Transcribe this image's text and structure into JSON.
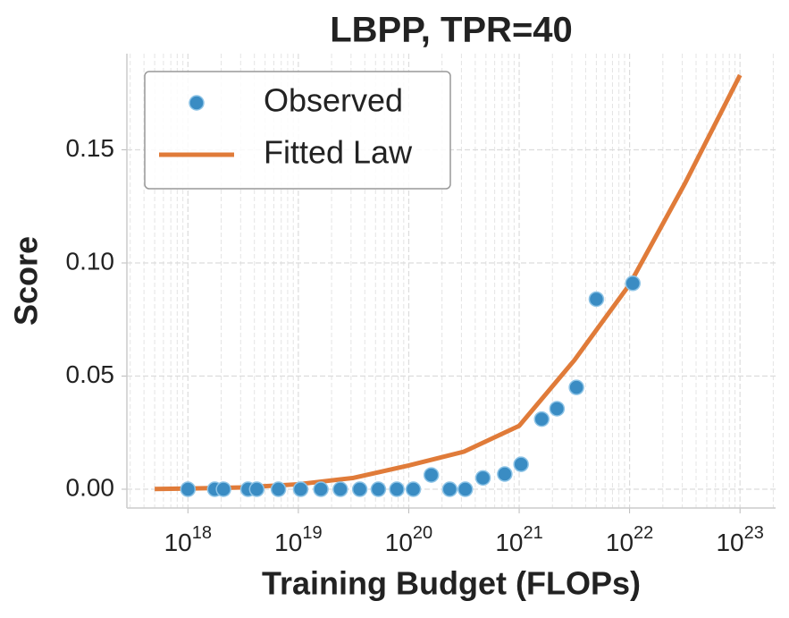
{
  "chart_data": {
    "type": "scatter",
    "title": "LBPP, TPR=40",
    "xlabel": "Training Budget (FLOPs)",
    "ylabel": "Score",
    "xscale": "log",
    "grid": true,
    "minor_grid": true,
    "legend": "upper left",
    "xlim": [
      2.8e+17,
      2.1e+23
    ],
    "ylim": [
      -0.0083,
      0.1925
    ],
    "xticks": [
      {
        "value": 1e+18,
        "label": "10^18"
      },
      {
        "value": 1e+19,
        "label": "10^19"
      },
      {
        "value": 1e+20,
        "label": "10^20"
      },
      {
        "value": 1e+21,
        "label": "10^21"
      },
      {
        "value": 1e+22,
        "label": "10^22"
      },
      {
        "value": 1e+23,
        "label": "10^23"
      }
    ],
    "yticks": [
      {
        "value": 0,
        "label": "0.00"
      },
      {
        "value": 0.05,
        "label": "0.05"
      },
      {
        "value": 0.1,
        "label": "0.10"
      },
      {
        "value": 0.15,
        "label": "0.15"
      }
    ],
    "series": [
      {
        "name": "Observed",
        "type": "scatter",
        "color": "#3a8cc3",
        "x": [
          1e+18,
          1.75e+18,
          2.1e+18,
          3.5e+18,
          4.2e+18,
          6.6e+18,
          1.05e+19,
          1.6e+19,
          2.4e+19,
          3.6e+19,
          5.3e+19,
          7.8e+19,
          1.1e+20,
          1.6e+20,
          2.35e+20,
          3.25e+20,
          4.7e+20,
          7.4e+20,
          1.04e+21,
          1.6e+21,
          2.2e+21,
          3.3e+21,
          5e+21,
          1.07e+22
        ],
        "values": [
          0,
          0,
          0,
          0,
          0,
          0,
          0,
          0,
          0,
          0,
          0,
          0,
          0,
          0.0063,
          0,
          0,
          0.005,
          0.0067,
          0.011,
          0.031,
          0.0356,
          0.045,
          0.084,
          0.091
        ]
      },
      {
        "name": "Fitted Law",
        "type": "line",
        "color": "#e07b39",
        "x": [
          5e+17,
          1e+18,
          3.16e+18,
          1e+19,
          3.16e+19,
          1e+20,
          3.16e+20,
          1e+21,
          3.16e+21,
          1e+22,
          3.16e+22,
          1e+23
        ],
        "values": [
          0.0001,
          0.0003,
          0.0008,
          0.0022,
          0.005,
          0.0105,
          0.0166,
          0.028,
          0.057,
          0.0905,
          0.135,
          0.183
        ]
      }
    ]
  }
}
